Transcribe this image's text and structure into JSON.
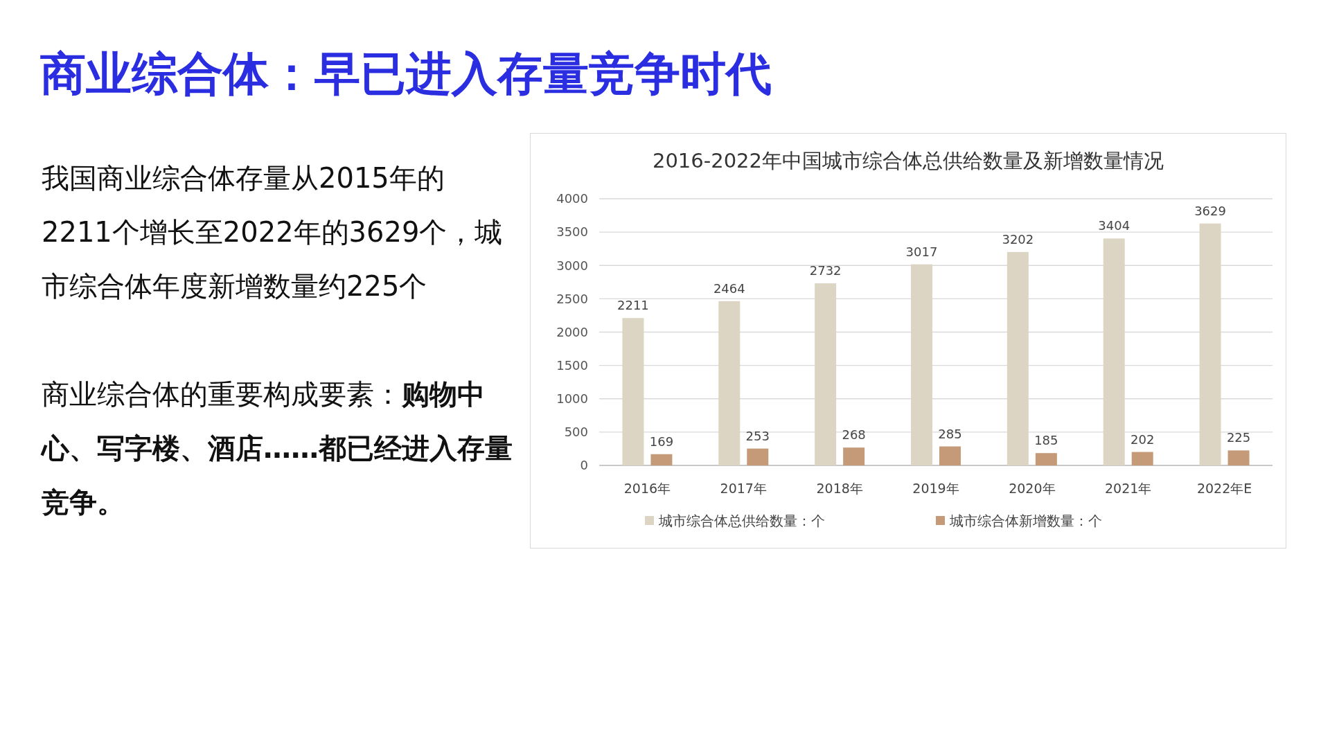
{
  "chart_data": {
    "type": "bar",
    "title": "2016-2022年中国城市综合体总供给数量及新增数量情况",
    "categories": [
      "2016年",
      "2017年",
      "2018年",
      "2019年",
      "2020年",
      "2021年",
      "2022年E"
    ],
    "series": [
      {
        "name": "城市综合体总供给数量：个",
        "color": "#ddd5c4",
        "values": [
          2211,
          2464,
          2732,
          3017,
          3202,
          3404,
          3629
        ]
      },
      {
        "name": "城市综合体新增数量：个",
        "color": "#c49a78",
        "values": [
          169,
          253,
          268,
          285,
          185,
          202,
          225
        ]
      }
    ],
    "ylim": [
      0,
      4000
    ],
    "yticks": [
      0,
      500,
      1000,
      1500,
      2000,
      2500,
      3000,
      3500,
      4000
    ],
    "grid": "y",
    "legend": "bottom",
    "data_labels": true,
    "annotations": [
      "商业综合体：早已进入存量竞争时代",
      "我国商业综合体存量从2015年的2211个增长至2022年的3629个，城市综合体年度新增数量约225个",
      "商业综合体的重要构成要素：",
      "购物中心、写字楼、酒店……都已经进入存量竞争。"
    ]
  }
}
